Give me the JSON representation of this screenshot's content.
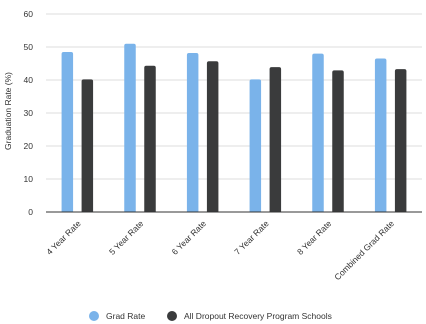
{
  "chart_data": {
    "type": "bar",
    "title": "",
    "xlabel": "",
    "ylabel": "Graduation Rate (%)",
    "ylim": [
      0,
      60
    ],
    "yticks": [
      0,
      10,
      20,
      30,
      40,
      50,
      60
    ],
    "grid": true,
    "legend_position": "bottom",
    "categories": [
      "4 Year Rate",
      "5 Year Rate",
      "6 Year Rate",
      "7 Year Rate",
      "8 Year Rate",
      "Combined Grad Rate"
    ],
    "series": [
      {
        "name": "Grad Rate",
        "color": "#7ab3ea",
        "values": [
          48.5,
          51.0,
          48.2,
          40.2,
          48.0,
          46.5
        ]
      },
      {
        "name": "All Dropout Recovery Program Schools",
        "color": "#3a3b3c",
        "values": [
          40.2,
          44.3,
          45.7,
          43.9,
          42.9,
          43.3
        ]
      }
    ]
  }
}
